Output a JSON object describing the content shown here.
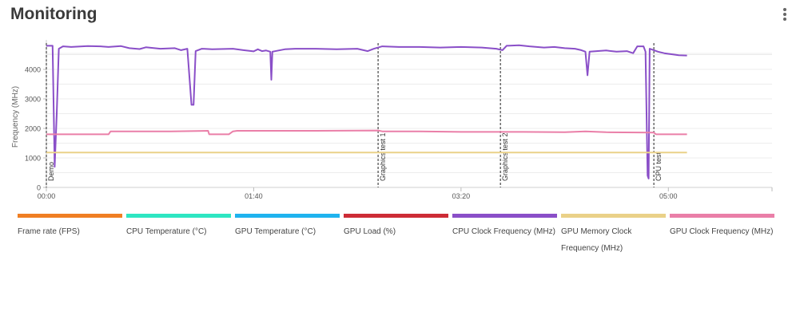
{
  "header": {
    "title": "Monitoring",
    "menu_icon": "more-vertical-icon"
  },
  "chart_data": {
    "type": "line",
    "ylabel": "Frequency (MHz)",
    "y_ticks": [
      "0",
      "1000",
      "2000",
      "3000",
      "4000"
    ],
    "x_ticks": [
      "00:00",
      "01:40",
      "03:20",
      "05:00"
    ],
    "ylim": [
      0,
      5000
    ],
    "xlim_seconds": [
      0,
      350
    ],
    "grid": true,
    "legend_position": "bottom",
    "events": [
      {
        "t": 0,
        "label": "Demo"
      },
      {
        "t": 160,
        "label": "Graphics test 1"
      },
      {
        "t": 219,
        "label": "Graphics test 2"
      },
      {
        "t": 293,
        "label": "CPU test"
      }
    ],
    "series": [
      {
        "name": "Frame rate (FPS)",
        "color": "#f07f23",
        "points": []
      },
      {
        "name": "CPU Temperature (°C)",
        "color": "#2ee6c2",
        "points": []
      },
      {
        "name": "GPU Temperature (°C)",
        "color": "#1fb3ef",
        "points": []
      },
      {
        "name": "GPU Load (%)",
        "color": "#cd2c36",
        "points": []
      },
      {
        "name": "CPU Clock Frequency (MHz)",
        "color": "#8a4fc8",
        "points": [
          [
            0,
            4800
          ],
          [
            3,
            4800
          ],
          [
            4,
            700
          ],
          [
            5,
            2500
          ],
          [
            6,
            4700
          ],
          [
            8,
            4780
          ],
          [
            12,
            4760
          ],
          [
            20,
            4790
          ],
          [
            26,
            4780
          ],
          [
            30,
            4760
          ],
          [
            36,
            4790
          ],
          [
            40,
            4720
          ],
          [
            45,
            4690
          ],
          [
            48,
            4750
          ],
          [
            55,
            4700
          ],
          [
            62,
            4720
          ],
          [
            65,
            4650
          ],
          [
            68,
            4700
          ],
          [
            70,
            2800
          ],
          [
            71,
            2800
          ],
          [
            72,
            4620
          ],
          [
            75,
            4700
          ],
          [
            80,
            4680
          ],
          [
            90,
            4700
          ],
          [
            95,
            4650
          ],
          [
            100,
            4610
          ],
          [
            102,
            4680
          ],
          [
            104,
            4620
          ],
          [
            106,
            4640
          ],
          [
            108,
            4600
          ],
          [
            108.5,
            3650
          ],
          [
            109,
            4600
          ],
          [
            115,
            4680
          ],
          [
            120,
            4700
          ],
          [
            130,
            4700
          ],
          [
            140,
            4680
          ],
          [
            150,
            4700
          ],
          [
            155,
            4620
          ],
          [
            158,
            4700
          ],
          [
            162,
            4780
          ],
          [
            170,
            4760
          ],
          [
            180,
            4760
          ],
          [
            190,
            4740
          ],
          [
            200,
            4760
          ],
          [
            210,
            4740
          ],
          [
            217,
            4700
          ],
          [
            220,
            4650
          ],
          [
            222,
            4800
          ],
          [
            228,
            4820
          ],
          [
            233,
            4780
          ],
          [
            240,
            4740
          ],
          [
            245,
            4760
          ],
          [
            250,
            4720
          ],
          [
            255,
            4700
          ],
          [
            258,
            4650
          ],
          [
            260,
            4600
          ],
          [
            261,
            3800
          ],
          [
            262,
            4600
          ],
          [
            270,
            4640
          ],
          [
            275,
            4600
          ],
          [
            280,
            4620
          ],
          [
            283,
            4550
          ],
          [
            285,
            4780
          ],
          [
            288,
            4780
          ],
          [
            289,
            4600
          ],
          [
            290,
            400
          ],
          [
            290.5,
            300
          ],
          [
            291,
            4700
          ],
          [
            293,
            4650
          ],
          [
            295,
            4600
          ],
          [
            298,
            4550
          ],
          [
            305,
            4480
          ],
          [
            309,
            4470
          ]
        ]
      },
      {
        "name": "GPU Memory Clock Frequency (MHz)",
        "color": "#ead188",
        "points": [
          [
            0,
            1180
          ],
          [
            309,
            1180
          ]
        ]
      },
      {
        "name": "GPU Clock Frequency (MHz)",
        "color": "#ea7fa8",
        "points": [
          [
            0,
            1800
          ],
          [
            30,
            1800
          ],
          [
            31,
            1900
          ],
          [
            60,
            1900
          ],
          [
            78,
            1920
          ],
          [
            78.5,
            1800
          ],
          [
            88,
            1800
          ],
          [
            90,
            1900
          ],
          [
            92,
            1920
          ],
          [
            130,
            1920
          ],
          [
            160,
            1930
          ],
          [
            162,
            1900
          ],
          [
            180,
            1900
          ],
          [
            200,
            1880
          ],
          [
            230,
            1880
          ],
          [
            250,
            1870
          ],
          [
            260,
            1900
          ],
          [
            270,
            1870
          ],
          [
            293,
            1860
          ],
          [
            294,
            1800
          ],
          [
            309,
            1800
          ]
        ]
      }
    ]
  }
}
